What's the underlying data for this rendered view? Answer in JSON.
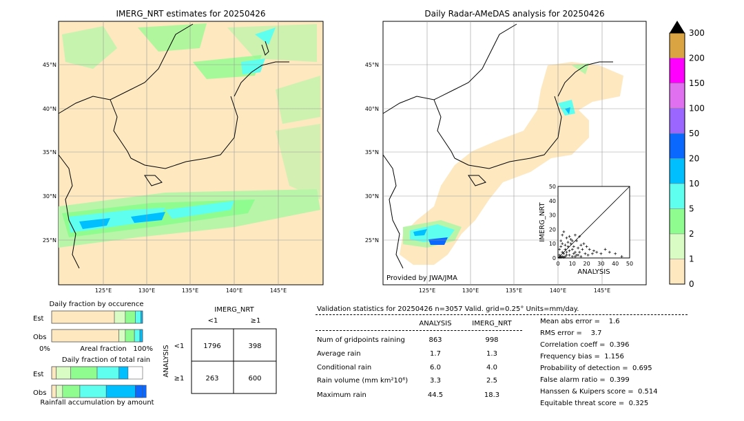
{
  "left_map": {
    "title": "IMERG_NRT estimates for 20250426",
    "lat_ticks": [
      "45°N",
      "40°N",
      "35°N",
      "30°N",
      "25°N"
    ],
    "lon_ticks": [
      "125°E",
      "130°E",
      "135°E",
      "140°E",
      "145°E"
    ]
  },
  "right_map": {
    "title": "Daily Radar-AMeDAS analysis for 20250426",
    "lat_ticks": [
      "45°N",
      "40°N",
      "35°N",
      "30°N",
      "25°N"
    ],
    "lon_ticks": [
      "125°E",
      "130°E",
      "135°E",
      "140°E",
      "145°E"
    ],
    "credit": "Provided by JWA/JMA"
  },
  "colorbar": {
    "labels": [
      "300",
      "200",
      "150",
      "100",
      "50",
      "20",
      "10",
      "5",
      "2",
      "1",
      "0"
    ],
    "colors": [
      "#d9a441",
      "#ff00ff",
      "#e070f0",
      "#9a66ff",
      "#0a68ff",
      "#00bfff",
      "#5ffff0",
      "#8efc8e",
      "#d8fcc4",
      "#fde8c0"
    ],
    "extend_color": "#000000"
  },
  "occurrence": {
    "title": "Daily fraction by occurence",
    "rows": [
      "Est",
      "Obs"
    ],
    "axis_left": "0%",
    "axis_mid": "Areal fraction",
    "axis_right": "100%"
  },
  "total_rain": {
    "title": "Daily fraction of total rain",
    "rows": [
      "Est",
      "Obs"
    ],
    "caption": "Rainfall accumulation by amount"
  },
  "contingency": {
    "col_header": "IMERG_NRT",
    "col_labels": [
      "<1",
      "≥1"
    ],
    "row_header": "ANALYSIS",
    "row_labels": [
      "<1",
      "≥1"
    ],
    "cells": [
      [
        "1796",
        "398"
      ],
      [
        "263",
        "600"
      ]
    ]
  },
  "validation": {
    "header": "Validation statistics for 20250426  n=3057 Valid. grid=0.25° Units=mm/day.",
    "col_headers": [
      "ANALYSIS",
      "IMERG_NRT"
    ],
    "rows": [
      {
        "label": "Num of gridpoints raining",
        "analysis": "863",
        "imerg": "998"
      },
      {
        "label": "Average rain",
        "analysis": "1.7",
        "imerg": "1.3"
      },
      {
        "label": "Conditional rain",
        "analysis": "6.0",
        "imerg": "4.0"
      },
      {
        "label": "Rain volume (mm km²10⁶)",
        "analysis": "3.3",
        "imerg": "2.5"
      },
      {
        "label": "Maximum rain",
        "analysis": "44.5",
        "imerg": "18.3"
      }
    ],
    "scores": [
      "Mean abs error =    1.6",
      "RMS error =    3.7",
      "Correlation coeff =  0.396",
      "Frequency bias =  1.156",
      "Probability of detection =  0.695",
      "False alarm ratio =  0.399",
      "Hanssen & Kuipers score =  0.514",
      "Equitable threat score =  0.325"
    ]
  },
  "chart_data": [
    {
      "type": "scatter",
      "xlabel": "ANALYSIS",
      "ylabel": "IMERG_NRT",
      "xlim": [
        0,
        50
      ],
      "ylim": [
        0,
        50
      ],
      "x_ticks": [
        "0",
        "10",
        "20",
        "30",
        "40",
        "50"
      ],
      "y_ticks": [
        "0",
        "10",
        "20",
        "30",
        "40",
        "50"
      ],
      "points": [
        [
          1,
          2
        ],
        [
          2,
          1
        ],
        [
          3,
          4
        ],
        [
          4,
          3
        ],
        [
          5,
          6
        ],
        [
          6,
          4
        ],
        [
          7,
          8
        ],
        [
          8,
          5
        ],
        [
          9,
          10
        ],
        [
          10,
          6
        ],
        [
          11,
          8
        ],
        [
          12,
          4
        ],
        [
          13,
          12
        ],
        [
          14,
          7
        ],
        [
          15,
          15
        ],
        [
          16,
          9
        ],
        [
          18,
          10
        ],
        [
          20,
          8
        ],
        [
          22,
          6
        ],
        [
          25,
          5
        ],
        [
          27,
          4
        ],
        [
          30,
          3
        ],
        [
          33,
          6
        ],
        [
          36,
          4
        ],
        [
          40,
          3
        ],
        [
          44.5,
          1
        ],
        [
          2,
          12
        ],
        [
          3,
          16
        ],
        [
          4,
          18.3
        ],
        [
          6,
          14
        ],
        [
          8,
          15
        ],
        [
          10,
          12
        ],
        [
          12,
          16
        ],
        [
          5,
          9
        ],
        [
          7,
          11
        ],
        [
          9,
          13
        ],
        [
          1,
          6
        ],
        [
          2,
          8
        ],
        [
          3,
          10
        ],
        [
          11,
          3
        ],
        [
          13,
          2
        ],
        [
          15,
          4
        ],
        [
          17,
          6
        ],
        [
          19,
          3
        ],
        [
          21,
          2
        ],
        [
          24,
          3
        ],
        [
          1,
          0.5
        ],
        [
          2,
          0.5
        ],
        [
          3,
          1
        ],
        [
          4,
          0.5
        ],
        [
          5,
          1
        ],
        [
          6,
          2
        ],
        [
          8,
          2
        ],
        [
          10,
          1
        ],
        [
          12,
          1
        ],
        [
          14,
          2
        ],
        [
          16,
          1
        ]
      ]
    },
    {
      "type": "bar",
      "title": "Daily fraction by occurence",
      "categories": [
        "Est",
        "Obs"
      ],
      "series": [
        {
          "values": [
            0.69,
            0.74
          ]
        },
        {
          "values": [
            0.12,
            0.07
          ]
        },
        {
          "values": [
            0.11,
            0.1
          ]
        },
        {
          "values": [
            0.06,
            0.06
          ]
        },
        {
          "values": [
            0.02,
            0.03
          ]
        }
      ]
    },
    {
      "type": "bar",
      "title": "Daily fraction of total rain",
      "categories": [
        "Est",
        "Obs"
      ],
      "series": [
        {
          "values": [
            0.05,
            0.05
          ]
        },
        {
          "values": [
            0.16,
            0.07
          ]
        },
        {
          "values": [
            0.29,
            0.19
          ]
        },
        {
          "values": [
            0.24,
            0.29
          ]
        },
        {
          "values": [
            0.1,
            0.32
          ]
        },
        {
          "values": [
            0.0,
            0.12
          ]
        }
      ]
    }
  ]
}
